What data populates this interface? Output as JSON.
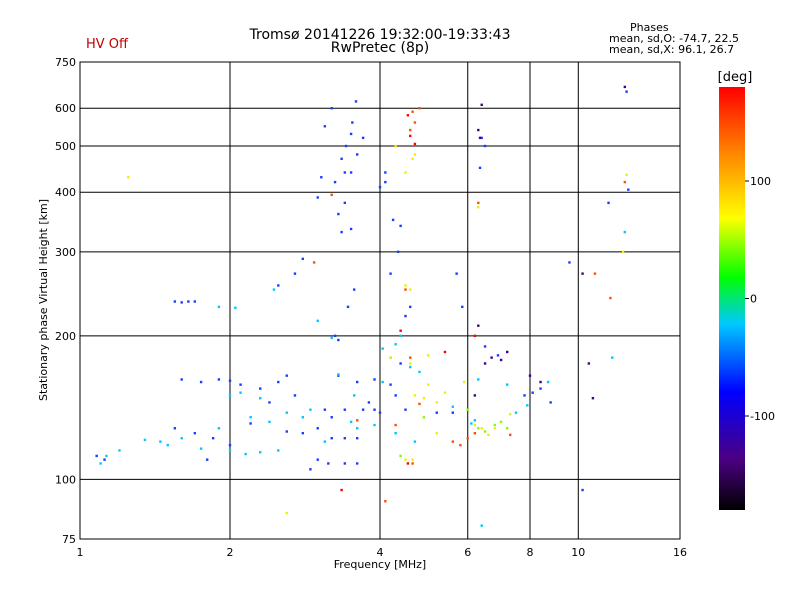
{
  "header": {
    "title_line1": "Tromsø 20141226 19:32:00-19:33:43",
    "title_line2": "RwPretec (8p)",
    "status": "HV Off",
    "phases_heading": "Phases",
    "phases_o": "mean, sd,O: -74.7, 22.5",
    "phases_x": "mean, sd,X:  96.1, 26.7"
  },
  "chart_data": {
    "type": "scatter",
    "title": "Tromsø 20141226 19:32:00-19:33:43",
    "subtitle": "RwPretec (8p)",
    "xlabel": "Frequency [MHz]",
    "ylabel": "Stationary phase Virtual Height [km]",
    "x_scale": "log",
    "y_scale": "log",
    "xlim": [
      1,
      16
    ],
    "ylim": [
      75,
      750
    ],
    "x_ticks": [
      1,
      2,
      4,
      6,
      8,
      10,
      16
    ],
    "x_tick_labels": [
      "1",
      "2",
      "4",
      "6",
      "8",
      "10",
      "16"
    ],
    "y_ticks": [
      75,
      100,
      200,
      300,
      400,
      500,
      600,
      750
    ],
    "y_tick_labels": [
      "75",
      "100",
      "200",
      "300",
      "400",
      "500",
      "600",
      "750"
    ],
    "grid": true,
    "colorbar": {
      "label": "[deg]",
      "range": [
        -180,
        180
      ],
      "ticks": [
        100,
        0,
        -100
      ],
      "tick_labels": [
        "100",
        "0",
        "-100"
      ],
      "colors": [
        "#000000",
        "#4b0082",
        "#0000ff",
        "#00bfff",
        "#00ff00",
        "#ffff00",
        "#ff8000",
        "#ff0000"
      ]
    },
    "series": [
      {
        "color": "#1a3cff",
        "values": [
          [
            1.08,
            112
          ],
          [
            1.12,
            110
          ],
          [
            1.55,
            236
          ],
          [
            1.6,
            235
          ],
          [
            1.65,
            236
          ],
          [
            1.7,
            236
          ],
          [
            1.6,
            162
          ],
          [
            1.75,
            160
          ],
          [
            1.9,
            162
          ],
          [
            2.0,
            161
          ],
          [
            2.1,
            158
          ],
          [
            1.55,
            128
          ],
          [
            1.7,
            125
          ],
          [
            1.85,
            122
          ],
          [
            2.0,
            118
          ],
          [
            1.8,
            110
          ],
          [
            2.3,
            155
          ],
          [
            2.5,
            160
          ],
          [
            2.6,
            165
          ],
          [
            2.4,
            145
          ],
          [
            2.7,
            150
          ],
          [
            2.2,
            131
          ],
          [
            2.8,
            125
          ],
          [
            3.0,
            128
          ],
          [
            3.2,
            122
          ],
          [
            3.4,
            122
          ],
          [
            3.6,
            122
          ],
          [
            3.1,
            140
          ],
          [
            3.4,
            140
          ],
          [
            3.7,
            140
          ],
          [
            3.9,
            140
          ],
          [
            3.15,
            108
          ],
          [
            3.4,
            108
          ],
          [
            3.6,
            108
          ],
          [
            3.0,
            110
          ],
          [
            3.2,
            135
          ],
          [
            3.3,
            165
          ],
          [
            3.6,
            160
          ],
          [
            3.9,
            162
          ],
          [
            4.0,
            138
          ],
          [
            4.5,
            140
          ],
          [
            4.2,
            158
          ],
          [
            5.2,
            138
          ],
          [
            5.6,
            138
          ],
          [
            3.25,
            200
          ],
          [
            3.3,
            196
          ],
          [
            3.35,
            330
          ],
          [
            3.5,
            335
          ],
          [
            3.3,
            360
          ],
          [
            3.4,
            380
          ],
          [
            3.55,
            250
          ],
          [
            3.45,
            230
          ],
          [
            3.25,
            420
          ],
          [
            3.35,
            470
          ],
          [
            3.42,
            500
          ],
          [
            3.5,
            530
          ],
          [
            3.52,
            560
          ],
          [
            3.58,
            620
          ],
          [
            3.5,
            440
          ],
          [
            3.6,
            480
          ],
          [
            3.7,
            520
          ],
          [
            3.4,
            440
          ],
          [
            3.05,
            430
          ],
          [
            3.1,
            550
          ],
          [
            3.2,
            600
          ],
          [
            4.0,
            410
          ],
          [
            4.1,
            420
          ],
          [
            4.1,
            440
          ],
          [
            4.25,
            350
          ],
          [
            4.35,
            300
          ],
          [
            4.2,
            270
          ],
          [
            4.4,
            340
          ],
          [
            4.5,
            220
          ],
          [
            5.7,
            270
          ],
          [
            5.85,
            230
          ],
          [
            6.35,
            450
          ],
          [
            6.4,
            520
          ],
          [
            6.5,
            500
          ],
          [
            2.8,
            290
          ],
          [
            2.5,
            255
          ],
          [
            3.8,
            145
          ],
          [
            4.3,
            150
          ],
          [
            2.7,
            270
          ],
          [
            3.0,
            390
          ],
          [
            4.6,
            230
          ],
          [
            4.4,
            175
          ],
          [
            2.6,
            126
          ],
          [
            2.9,
            105
          ],
          [
            6.5,
            190
          ],
          [
            6.9,
            182
          ],
          [
            7.8,
            150
          ],
          [
            8.1,
            152
          ],
          [
            8.4,
            155
          ],
          [
            8.8,
            145
          ],
          [
            9.6,
            285
          ],
          [
            12.5,
            650
          ],
          [
            12.6,
            405
          ],
          [
            11.5,
            380
          ],
          [
            10.2,
            95
          ]
        ]
      },
      {
        "color": "#00c8ff",
        "values": [
          [
            1.1,
            108
          ],
          [
            1.13,
            112
          ],
          [
            1.2,
            115
          ],
          [
            1.35,
            121
          ],
          [
            1.45,
            120
          ],
          [
            1.6,
            122
          ],
          [
            1.5,
            118
          ],
          [
            1.75,
            116
          ],
          [
            2.0,
            115
          ],
          [
            2.15,
            113
          ],
          [
            2.3,
            114
          ],
          [
            2.5,
            115
          ],
          [
            1.9,
            128
          ],
          [
            2.2,
            135
          ],
          [
            2.4,
            132
          ],
          [
            2.6,
            138
          ],
          [
            2.8,
            135
          ],
          [
            3.1,
            120
          ],
          [
            3.6,
            128
          ],
          [
            3.9,
            130
          ],
          [
            4.3,
            125
          ],
          [
            1.9,
            230
          ],
          [
            2.05,
            229
          ],
          [
            2.45,
            250
          ],
          [
            3.0,
            215
          ],
          [
            3.2,
            198
          ],
          [
            3.55,
            150
          ],
          [
            3.3,
            166
          ],
          [
            4.05,
            188
          ],
          [
            4.3,
            192
          ],
          [
            4.6,
            172
          ],
          [
            4.8,
            168
          ],
          [
            5.6,
            142
          ],
          [
            6.3,
            162
          ],
          [
            7.2,
            158
          ],
          [
            7.5,
            138
          ],
          [
            7.9,
            143
          ],
          [
            8.7,
            160
          ],
          [
            6.1,
            131
          ],
          [
            6.2,
            133
          ],
          [
            4.7,
            120
          ],
          [
            4.05,
            160
          ],
          [
            4.2,
            180
          ],
          [
            4.4,
            200
          ],
          [
            6.4,
            80
          ],
          [
            12.4,
            330
          ],
          [
            11.7,
            180
          ],
          [
            2.0,
            150
          ],
          [
            2.1,
            152
          ],
          [
            2.3,
            148
          ],
          [
            2.9,
            140
          ],
          [
            3.5,
            132
          ]
        ]
      },
      {
        "color": "#f0f000",
        "values": [
          [
            4.5,
            440
          ],
          [
            4.65,
            470
          ],
          [
            4.7,
            480
          ],
          [
            4.3,
            500
          ],
          [
            4.5,
            255
          ],
          [
            4.6,
            250
          ],
          [
            4.2,
            180
          ],
          [
            4.6,
            175
          ],
          [
            5.0,
            182
          ],
          [
            5.0,
            158
          ],
          [
            4.7,
            150
          ],
          [
            4.9,
            148
          ],
          [
            5.2,
            145
          ],
          [
            5.4,
            152
          ],
          [
            5.9,
            160
          ],
          [
            6.2,
            130
          ],
          [
            6.4,
            128
          ],
          [
            6.6,
            124
          ],
          [
            6.8,
            128
          ],
          [
            7.3,
            137
          ],
          [
            4.5,
            110
          ],
          [
            4.65,
            110
          ],
          [
            6.3,
            372
          ],
          [
            12.5,
            435
          ],
          [
            12.3,
            300
          ],
          [
            1.25,
            430
          ],
          [
            2.6,
            85
          ],
          [
            5.2,
            125
          ]
        ]
      },
      {
        "color": "#80ff00",
        "values": [
          [
            6.3,
            128
          ],
          [
            6.5,
            126
          ],
          [
            6.8,
            130
          ],
          [
            7.0,
            132
          ],
          [
            7.2,
            128
          ],
          [
            6.0,
            140
          ],
          [
            4.9,
            135
          ],
          [
            4.4,
            112
          ]
        ]
      },
      {
        "color": "#ff5000",
        "values": [
          [
            4.6,
            540
          ],
          [
            4.7,
            560
          ],
          [
            4.65,
            590
          ],
          [
            4.8,
            600
          ],
          [
            4.5,
            250
          ],
          [
            4.6,
            180
          ],
          [
            5.6,
            120
          ],
          [
            5.8,
            118
          ],
          [
            6.0,
            122
          ],
          [
            6.2,
            125
          ],
          [
            2.95,
            285
          ],
          [
            3.2,
            395
          ],
          [
            4.1,
            90
          ],
          [
            7.3,
            124
          ],
          [
            12.4,
            420
          ],
          [
            6.3,
            380
          ],
          [
            10.8,
            270
          ],
          [
            11.6,
            240
          ],
          [
            4.3,
            130
          ],
          [
            3.6,
            133
          ],
          [
            4.8,
            144
          ],
          [
            4.65,
            108
          ]
        ]
      },
      {
        "color": "#ff0000",
        "values": [
          [
            4.55,
            580
          ],
          [
            4.7,
            505
          ],
          [
            4.6,
            525
          ],
          [
            4.55,
            108
          ],
          [
            5.4,
            185
          ],
          [
            6.2,
            200
          ],
          [
            3.35,
            95
          ],
          [
            4.4,
            205
          ]
        ]
      },
      {
        "color": "#40008a",
        "values": [
          [
            6.35,
            520
          ],
          [
            6.4,
            610
          ],
          [
            6.3,
            540
          ],
          [
            6.5,
            175
          ],
          [
            6.7,
            180
          ],
          [
            7.0,
            178
          ],
          [
            7.2,
            185
          ],
          [
            8.0,
            165
          ],
          [
            8.4,
            160
          ],
          [
            6.2,
            150
          ],
          [
            10.5,
            175
          ],
          [
            10.7,
            148
          ],
          [
            12.4,
            665
          ],
          [
            10.2,
            270
          ],
          [
            6.3,
            210
          ]
        ]
      }
    ]
  }
}
